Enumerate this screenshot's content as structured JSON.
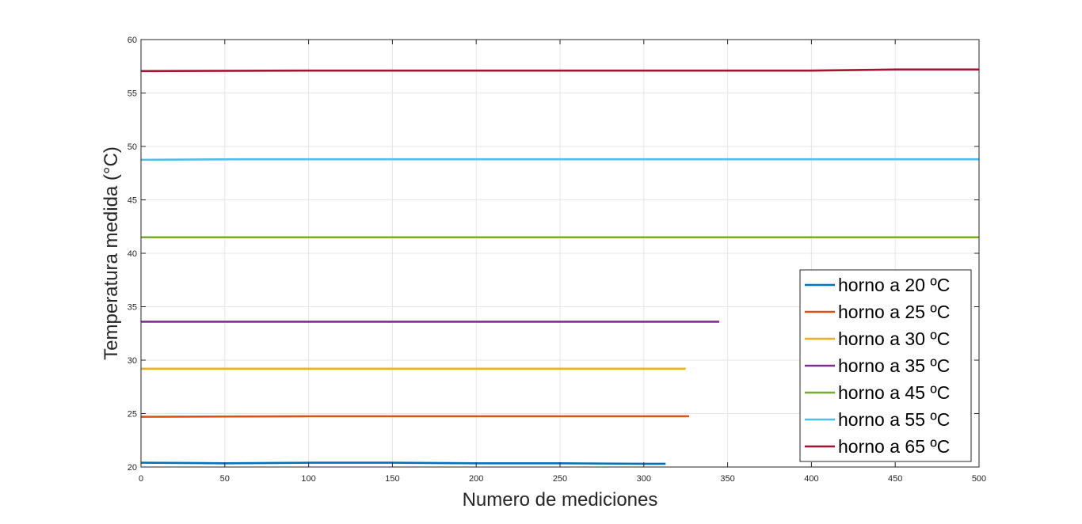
{
  "chart_data": {
    "type": "line",
    "title": "",
    "xlabel": "Numero de mediciones",
    "ylabel": "Temperatura medida (°C)",
    "xlim": [
      0,
      500
    ],
    "ylim": [
      20,
      60
    ],
    "xticks": [
      0,
      50,
      100,
      150,
      200,
      250,
      300,
      350,
      400,
      450,
      500
    ],
    "yticks": [
      20,
      25,
      30,
      35,
      40,
      45,
      50,
      55,
      60
    ],
    "grid": true,
    "legend_position": "bottom-right",
    "series": [
      {
        "name": "horno a 20 ºC",
        "color": "#0072BD",
        "x_end": 313,
        "points": [
          [
            0,
            20.4
          ],
          [
            50,
            20.35
          ],
          [
            100,
            20.4
          ],
          [
            150,
            20.4
          ],
          [
            200,
            20.35
          ],
          [
            250,
            20.35
          ],
          [
            300,
            20.3
          ],
          [
            313,
            20.3
          ]
        ]
      },
      {
        "name": "horno a 25 ºC",
        "color": "#D95319",
        "x_end": 327,
        "points": [
          [
            0,
            24.7
          ],
          [
            100,
            24.75
          ],
          [
            200,
            24.75
          ],
          [
            300,
            24.75
          ],
          [
            327,
            24.75
          ]
        ]
      },
      {
        "name": "horno a 30 ºC",
        "color": "#EDB120",
        "x_end": 325,
        "points": [
          [
            0,
            29.2
          ],
          [
            100,
            29.2
          ],
          [
            200,
            29.2
          ],
          [
            300,
            29.2
          ],
          [
            325,
            29.2
          ]
        ]
      },
      {
        "name": "horno a 35 ºC",
        "color": "#7E2F8E",
        "x_end": 345,
        "points": [
          [
            0,
            33.6
          ],
          [
            100,
            33.6
          ],
          [
            200,
            33.6
          ],
          [
            300,
            33.6
          ],
          [
            345,
            33.6
          ]
        ]
      },
      {
        "name": "horno a 45 ºC",
        "color": "#77AC30",
        "x_end": 500,
        "points": [
          [
            0,
            41.5
          ],
          [
            100,
            41.5
          ],
          [
            200,
            41.5
          ],
          [
            300,
            41.5
          ],
          [
            400,
            41.5
          ],
          [
            500,
            41.5
          ]
        ]
      },
      {
        "name": "horno a 55 ºC",
        "color": "#4DBEEE",
        "x_end": 500,
        "points": [
          [
            0,
            48.75
          ],
          [
            60,
            48.8
          ],
          [
            100,
            48.8
          ],
          [
            200,
            48.8
          ],
          [
            300,
            48.8
          ],
          [
            400,
            48.8
          ],
          [
            500,
            48.8
          ]
        ]
      },
      {
        "name": "horno a 65 ºC",
        "color": "#A2142F",
        "x_end": 500,
        "points": [
          [
            0,
            57.05
          ],
          [
            100,
            57.1
          ],
          [
            200,
            57.1
          ],
          [
            300,
            57.1
          ],
          [
            400,
            57.1
          ],
          [
            450,
            57.2
          ],
          [
            500,
            57.2
          ]
        ]
      }
    ]
  }
}
